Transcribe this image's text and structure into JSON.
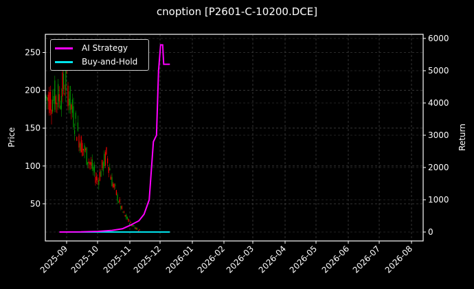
{
  "title": "cnoption [P2601-C-10200.DCE]",
  "colors": {
    "background": "#000000",
    "ai_strategy": "#ff00ff",
    "buy_and_hold": "#00e5ee",
    "up_candle": "#00a000",
    "down_candle": "#ff0000",
    "grid": "#444444"
  },
  "legend": {
    "items": [
      {
        "label": "AI Strategy",
        "color": "#ff00ff"
      },
      {
        "label": "Buy-and-Hold",
        "color": "#00e5ee"
      }
    ]
  },
  "axes": {
    "ylabel_left": "Price",
    "ylabel_right": "Return"
  },
  "chart_data": {
    "type": "line",
    "title": "cnoption [P2601-C-10200.DCE]",
    "xlabel": "",
    "ylabel": "Price",
    "ylabel_right": "Return",
    "x_ticks": [
      "2025-09",
      "2025-10",
      "2025-11",
      "2025-12",
      "2026-01",
      "2026-02",
      "2026-03",
      "2026-04",
      "2026-05",
      "2026-06",
      "2026-07",
      "2026-08"
    ],
    "y_left_ticks": [
      50,
      100,
      150,
      200,
      250
    ],
    "y_right_ticks": [
      0,
      1000,
      2000,
      3000,
      4000,
      5000,
      6000
    ],
    "ylim_left": [
      2,
      275
    ],
    "ylim_right": [
      -250,
      6100
    ],
    "grid": true,
    "legend_position": "upper left",
    "candlestick_price": {
      "description": "Daily OHLC candles, red=down, green=up, declining from ~230 to ~0",
      "approx_closes": [
        {
          "date": "2025-08-25",
          "price": 190
        },
        {
          "date": "2025-09-01",
          "price": 215
        },
        {
          "date": "2025-09-05",
          "price": 180
        },
        {
          "date": "2025-09-10",
          "price": 155
        },
        {
          "date": "2025-09-15",
          "price": 130
        },
        {
          "date": "2025-09-20",
          "price": 115
        },
        {
          "date": "2025-09-25",
          "price": 100
        },
        {
          "date": "2025-10-01",
          "price": 80
        },
        {
          "date": "2025-10-10",
          "price": 115
        },
        {
          "date": "2025-10-15",
          "price": 80
        },
        {
          "date": "2025-10-20",
          "price": 60
        },
        {
          "date": "2025-10-25",
          "price": 40
        },
        {
          "date": "2025-11-01",
          "price": 25
        },
        {
          "date": "2025-11-10",
          "price": 15
        },
        {
          "date": "2025-11-20",
          "price": 8
        },
        {
          "date": "2025-11-25",
          "price": 5
        },
        {
          "date": "2025-12-01",
          "price": 2
        }
      ]
    },
    "series": [
      {
        "name": "AI Strategy",
        "axis": "right",
        "color": "#ff00ff",
        "x": [
          "2025-08-25",
          "2025-09-15",
          "2025-10-01",
          "2025-10-15",
          "2025-10-25",
          "2025-11-01",
          "2025-11-10",
          "2025-11-15",
          "2025-11-20",
          "2025-11-24",
          "2025-11-27",
          "2025-11-29",
          "2025-12-01",
          "2025-12-03",
          "2025-12-04",
          "2025-12-10"
        ],
        "values": [
          0,
          5,
          20,
          50,
          100,
          200,
          350,
          550,
          1000,
          2800,
          3000,
          5000,
          5800,
          5800,
          5200,
          5200
        ]
      },
      {
        "name": "Buy-and-Hold",
        "axis": "right",
        "color": "#00e5ee",
        "x": [
          "2025-08-25",
          "2025-12-10"
        ],
        "values": [
          0,
          0
        ]
      }
    ]
  }
}
